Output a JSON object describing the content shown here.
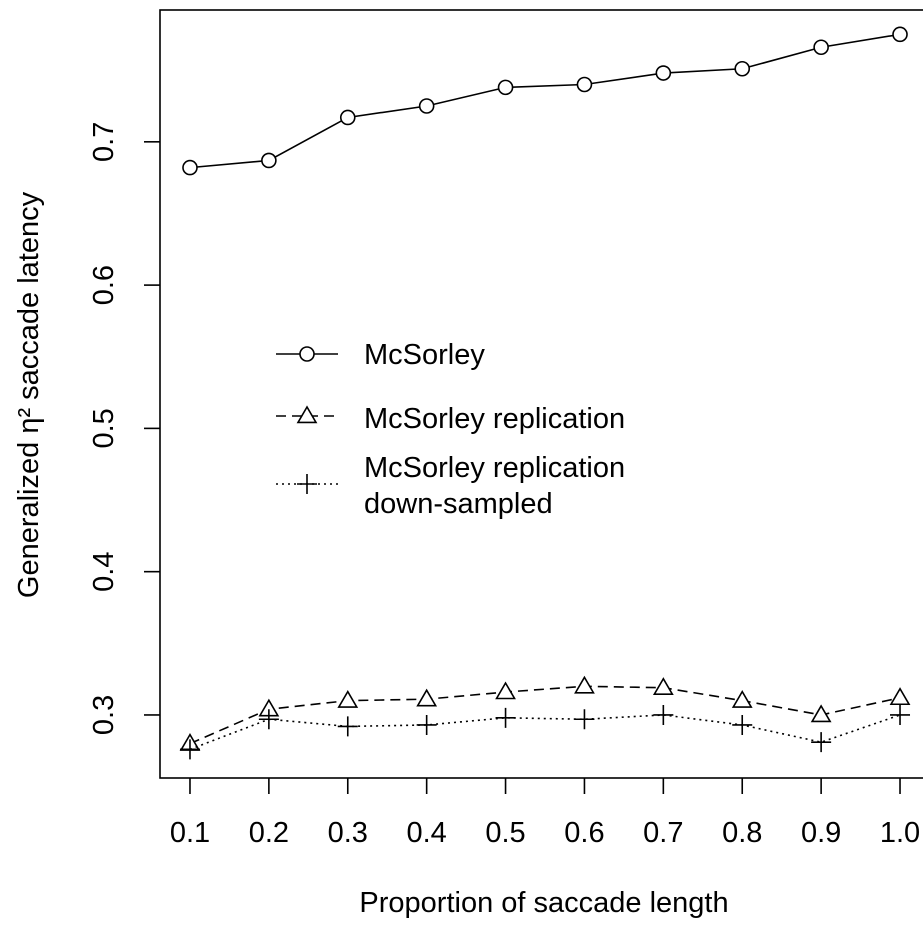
{
  "chart_data": {
    "type": "line",
    "x": [
      0.1,
      0.2,
      0.3,
      0.4,
      0.5,
      0.6,
      0.7,
      0.8,
      0.9,
      1.0
    ],
    "x_tick_labels": [
      "0.1",
      "0.2",
      "0.3",
      "0.4",
      "0.5",
      "0.6",
      "0.7",
      "0.8",
      "0.9",
      "1.0"
    ],
    "y_ticks": [
      0.3,
      0.4,
      0.5,
      0.6,
      0.7
    ],
    "y_tick_labels": [
      "0.3",
      "0.4",
      "0.5",
      "0.6",
      "0.7"
    ],
    "xlabel": "Proportion of saccade length",
    "ylabel": "Generalized η² saccade latency",
    "xlim": [
      0.062,
      1.038
    ],
    "ylim": [
      0.256,
      0.792
    ],
    "grid": false,
    "legend_position": "center-left",
    "series": [
      {
        "name": "McSorley",
        "marker": "circle",
        "line_style": "solid",
        "color": "#000000",
        "values": [
          0.682,
          0.687,
          0.717,
          0.725,
          0.738,
          0.74,
          0.748,
          0.751,
          0.766,
          0.775
        ]
      },
      {
        "name": "McSorley replication",
        "marker": "triangle",
        "line_style": "dashed",
        "color": "#000000",
        "values": [
          0.28,
          0.304,
          0.31,
          0.311,
          0.316,
          0.32,
          0.319,
          0.31,
          0.3,
          0.312
        ]
      },
      {
        "name": "McSorley replication down-sampled",
        "name_lines": [
          "McSorley replication",
          "down-sampled"
        ],
        "marker": "plus",
        "line_style": "dotted",
        "color": "#000000",
        "values": [
          0.276,
          0.297,
          0.292,
          0.293,
          0.298,
          0.297,
          0.3,
          0.293,
          0.281,
          0.3
        ]
      }
    ]
  }
}
